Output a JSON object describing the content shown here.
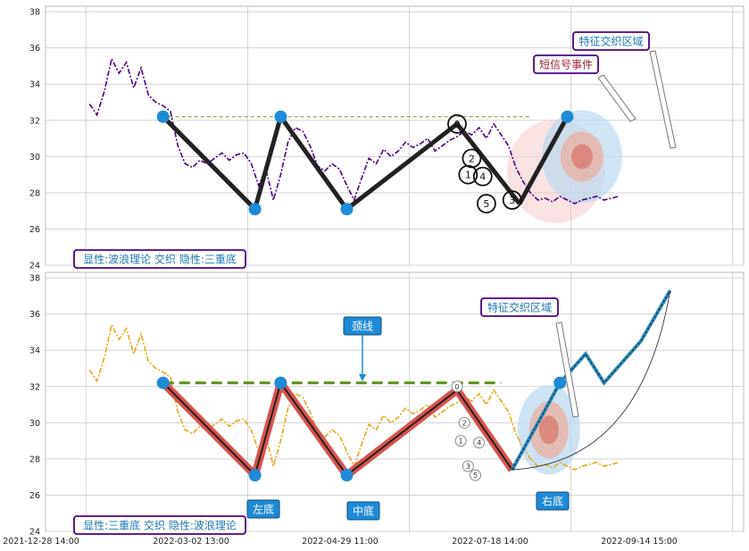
{
  "chart_data": [
    {
      "type": "line",
      "panel": "top",
      "ylim": [
        24,
        38.3
      ],
      "yticks": [
        24,
        26,
        28,
        30,
        32,
        34,
        36,
        38
      ],
      "series": [
        {
          "role": "price",
          "color": "#4b0082",
          "style": "dash-dot",
          "x": [
            0,
            2,
            4,
            6,
            8,
            10,
            12,
            14,
            16,
            18,
            20,
            22,
            24,
            26,
            28,
            30,
            32,
            34,
            36,
            38,
            40,
            42,
            44,
            46,
            48,
            50,
            52,
            54,
            56,
            58,
            60,
            62,
            64,
            66,
            68,
            70,
            72,
            74,
            76,
            78,
            80,
            82,
            84,
            86,
            88,
            90,
            92,
            94,
            96,
            98,
            100,
            102,
            104,
            106,
            108,
            110,
            112,
            114,
            116,
            118,
            120,
            122,
            124,
            126,
            128,
            130,
            132,
            134,
            136,
            138,
            140,
            142,
            144
          ],
          "y": [
            32.9,
            32.3,
            33.6,
            35.4,
            34.6,
            35.2,
            33.8,
            34.9,
            33.4,
            33.0,
            32.8,
            32.5,
            30.6,
            29.6,
            29.4,
            29.8,
            29.6,
            29.9,
            30.2,
            29.8,
            30.1,
            30.2,
            29.6,
            28.4,
            29.3,
            27.6,
            29.0,
            30.8,
            31.6,
            31.4,
            30.6,
            29.5,
            29.2,
            29.6,
            29.3,
            28.4,
            27.6,
            28.8,
            29.9,
            29.6,
            30.4,
            30.0,
            30.3,
            30.8,
            30.5,
            30.7,
            31.0,
            30.3,
            30.6,
            30.9,
            31.1,
            31.4,
            31.2,
            31.6,
            31.0,
            31.8,
            31.2,
            30.6,
            29.4,
            28.6,
            28.0,
            27.6,
            27.7,
            27.5,
            27.8,
            27.6,
            27.4,
            27.6,
            27.7,
            27.8,
            27.6,
            27.7,
            27.8
          ]
        },
        {
          "role": "wave",
          "color": "#222222",
          "x": [
            20,
            45,
            52,
            70,
            100,
            117
          ],
          "y": [
            32.2,
            27.1,
            32.2,
            27.1,
            31.8,
            27.4
          ]
        },
        {
          "role": "wave-extension",
          "color": "#222222",
          "x": [
            117,
            130
          ],
          "y": [
            27.4,
            32.2
          ]
        }
      ],
      "neckline": 32.2,
      "annotations": [
        {
          "text": "特征交织区域",
          "color": "#1f77b4",
          "border": "#4b0082"
        },
        {
          "text": "短信号事件",
          "color": "#a0243a",
          "border": "#4b0082"
        },
        {
          "text": "显性:波浪理论 交织 隐性:三重底",
          "color": "#1f77b4",
          "border": "#4b0082"
        }
      ],
      "wave_labels": [
        "0",
        "2",
        "1",
        "3",
        "4",
        "5"
      ]
    },
    {
      "type": "line",
      "panel": "bottom",
      "ylim": [
        24,
        38.3
      ],
      "yticks": [
        24,
        26,
        28,
        30,
        32,
        34,
        36,
        38
      ],
      "xticks": [
        "2021-12-28 14:00",
        "2022-03-02 13:00",
        "2022-04-29 11:00",
        "2022-07-18 14:00",
        "2022-09-14 15:00"
      ],
      "series": [
        {
          "role": "price",
          "color": "#e6a817",
          "style": "dash-dot"
        },
        {
          "role": "pattern",
          "color": "#d9534f",
          "x": [
            20,
            45,
            52,
            70,
            100,
            115
          ],
          "y": [
            32.2,
            27.1,
            32.2,
            27.1,
            31.8,
            27.4
          ]
        },
        {
          "role": "projection",
          "color": "#2b8cbe",
          "x": [
            115,
            128,
            135,
            140,
            150,
            158
          ],
          "y": [
            27.4,
            32.2,
            33.8,
            32.2,
            34.5,
            37.3
          ]
        }
      ],
      "neckline": 32.2,
      "annotations": [
        {
          "text": "颈线",
          "type": "blue-box"
        },
        {
          "text": "左底",
          "type": "blue-box"
        },
        {
          "text": "中底",
          "type": "blue-box"
        },
        {
          "text": "右底",
          "type": "blue-box"
        },
        {
          "text": "特征交织区域",
          "color": "#1f77b4",
          "border": "#4b0082"
        },
        {
          "text": "显性:三重底 交织 隐性:波浪理论",
          "color": "#1f77b4",
          "border": "#4b0082"
        }
      ],
      "wave_labels": [
        "0",
        "2",
        "1",
        "4",
        "3",
        "5"
      ]
    }
  ]
}
